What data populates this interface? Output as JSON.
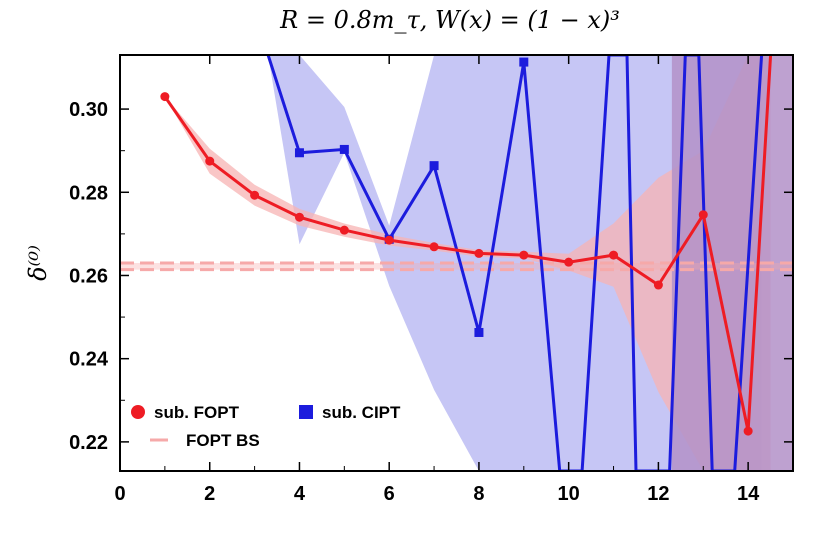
{
  "chart_data": {
    "type": "line",
    "title": "R = 0.8m_τ,  W(x) = (1 − x)³",
    "xlabel": "",
    "ylabel": "δ⁽⁰⁾",
    "xlim": [
      0,
      15
    ],
    "ylim": [
      0.213,
      0.313
    ],
    "xticks": [
      0,
      2,
      4,
      6,
      8,
      10,
      12,
      14
    ],
    "yticks": [
      0.22,
      0.24,
      0.26,
      0.28,
      0.3
    ],
    "ytick_labels": [
      "0.22",
      "0.24",
      "0.26",
      "0.28",
      "0.30"
    ],
    "legend_position": "bottom-left",
    "colors": {
      "fopt": "#ee1c24",
      "fopt_band": "#f7b3b3",
      "cipt": "#1c1cdd",
      "cipt_band": "#c6c6f5",
      "bs_line": "#f6a9a9",
      "overlap_band": "#b391c8"
    },
    "series": [
      {
        "name": "sub. FOPT",
        "marker": "circle",
        "x": [
          1,
          2,
          3,
          4,
          5,
          6,
          7,
          8,
          9,
          10,
          11,
          12,
          13,
          14,
          14.5
        ],
        "y": [
          0.303,
          0.2875,
          0.2793,
          0.274,
          0.2709,
          0.2685,
          0.2669,
          0.2653,
          0.2649,
          0.2632,
          0.2649,
          0.2577,
          0.2746,
          0.2226,
          0.313
        ],
        "band_upper": [
          0.303,
          0.2905,
          0.2818,
          0.276,
          0.2725,
          0.2698,
          0.2678,
          0.2661,
          0.2657,
          0.2652,
          0.2725,
          0.2835,
          0.29,
          0.313,
          0.313
        ],
        "band_lower": [
          0.303,
          0.2845,
          0.2768,
          0.272,
          0.2693,
          0.2672,
          0.266,
          0.2645,
          0.2641,
          0.2612,
          0.2573,
          0.232,
          0.213,
          0.213,
          0.213
        ]
      },
      {
        "name": "sub. CIPT",
        "marker": "square",
        "x": [
          3.3,
          4,
          5,
          6,
          7,
          8,
          9,
          9.8,
          10.3,
          10.9,
          11.3,
          11.5,
          12.25,
          12.6,
          12.9,
          13.2,
          13.7,
          14.3
        ],
        "y": [
          0.313,
          0.2895,
          0.2903,
          0.2687,
          0.2864,
          0.2463,
          0.3113,
          0.213,
          0.213,
          0.313,
          0.313,
          0.213,
          0.213,
          0.313,
          0.313,
          0.213,
          0.213,
          0.313
        ],
        "band_upper": [
          0.313,
          0.313,
          0.3005,
          0.272,
          0.313,
          0.313,
          0.313,
          0.313,
          0.313,
          0.313,
          0.313,
          0.313,
          0.313,
          0.313,
          0.313,
          0.313,
          0.313,
          0.313
        ],
        "band_lower": [
          0.313,
          0.2675,
          0.2895,
          0.2575,
          0.2325,
          0.213,
          0.213,
          0.213,
          0.213,
          0.213,
          0.213,
          0.213,
          0.213,
          0.213,
          0.213,
          0.213,
          0.213,
          0.213
        ]
      },
      {
        "name": "FOPT BS",
        "style": "dashed",
        "value": 0.2622,
        "band": [
          0.2614,
          0.263
        ]
      }
    ]
  }
}
